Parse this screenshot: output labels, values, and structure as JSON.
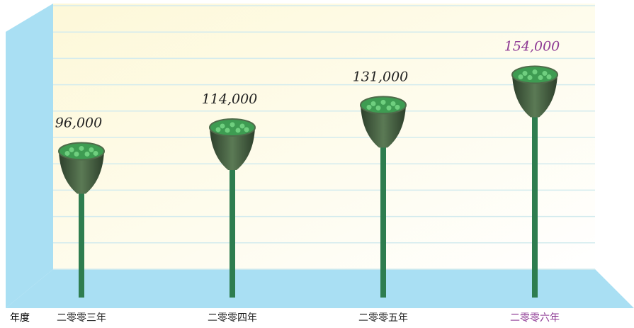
{
  "chart_data": {
    "type": "bar",
    "x_label": "年度",
    "categories": [
      "二零零三年",
      "二零零四年",
      "二零零五年",
      "二零零六年"
    ],
    "values": [
      96000,
      114000,
      131000,
      154000
    ],
    "value_labels": [
      "96,000",
      "114,000",
      "131,000",
      "154,000"
    ],
    "label_colors": [
      "#222222",
      "#222222",
      "#222222",
      "#8e3a94"
    ],
    "color": "#2e7d4f",
    "ylim": [
      0,
      200000
    ],
    "yticks": [
      0,
      20000,
      40000,
      60000,
      80000,
      100000,
      120000,
      140000,
      160000,
      180000,
      200000
    ],
    "grid": true
  }
}
